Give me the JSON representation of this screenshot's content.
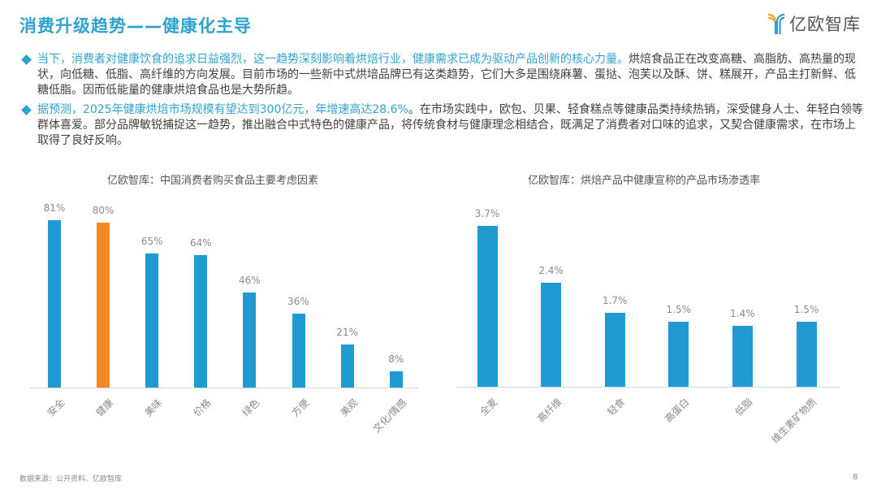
{
  "header": {
    "title": "消费升级趋势——健康化主导",
    "logo_text": "亿欧智库",
    "logo_icon": "yiou-y-logo-icon"
  },
  "bullets": [
    {
      "icon": "diamond-bullet-icon",
      "highlight": "当下，消费者对健康饮食的追求日益强烈，这一趋势深刻影响着烘焙行业，健康需求已成为驱动产品创新的核心力量。",
      "text": "烘焙食品正在改变高糖、高脂肪、高热量的现状，向低糖、低脂、高纤维的方向发展。目前市场的一些新中式烘培品牌已有这类趋势，它们大多是围绕麻薯、蛋挞、泡芙以及酥、饼、糕展开，产品主打新鲜、低糖低脂。因而低能量的健康烘焙食品也是大势所趋。"
    },
    {
      "icon": "diamond-bullet-icon",
      "highlight": "据预测，2025年健康烘焙市场规模有望达到300亿元，年增速高达28.6%",
      "text": "。在市场实践中，欧包、贝果、轻食糕点等健康品类持续热销，深受健身人士、年轻白领等群体喜爱。部分品牌敏锐捕捉这一趋势，推出融合中式特色的健康产品，将传统食材与健康理念相结合，既满足了消费者对口味的追求，又契合健康需求，在市场上取得了良好反响。"
    }
  ],
  "colors": {
    "accent": "#2fa3cf",
    "bar": "#1f9bd1",
    "highlight_bar": "#f5891f",
    "label": "#8a8a8a"
  },
  "chart_data": [
    {
      "type": "bar",
      "title": "亿欧智库：中国消费者购买食品主要考虑因素",
      "categories": [
        "安全",
        "健康",
        "美味",
        "价格",
        "绿色",
        "方便",
        "美观",
        "文化/情感"
      ],
      "values": [
        81,
        80,
        65,
        64,
        46,
        36,
        21,
        8
      ],
      "value_labels": [
        "81%",
        "80%",
        "65%",
        "64%",
        "46%",
        "36%",
        "21%",
        "8%"
      ],
      "highlight_index": 1,
      "unit": "%",
      "xlabel": "",
      "ylabel": "",
      "ylim": [
        0,
        100
      ],
      "grid": false,
      "legend": null
    },
    {
      "type": "bar",
      "title": "亿欧智库：烘焙产品中健康宣称的产品市场渗透率",
      "categories": [
        "全麦",
        "高纤维",
        "轻食",
        "高蛋白",
        "低脂",
        "维生素矿物质"
      ],
      "values": [
        3.7,
        2.4,
        1.7,
        1.5,
        1.4,
        1.5
      ],
      "value_labels": [
        "3.7%",
        "2.4%",
        "1.7%",
        "1.5%",
        "1.4%",
        "1.5%"
      ],
      "unit": "%",
      "xlabel": "",
      "ylabel": "",
      "ylim": [
        0,
        4
      ],
      "grid": false,
      "legend": null
    }
  ],
  "footer": {
    "source": "数据来源：公开资料、亿欧智库",
    "page": "8"
  }
}
